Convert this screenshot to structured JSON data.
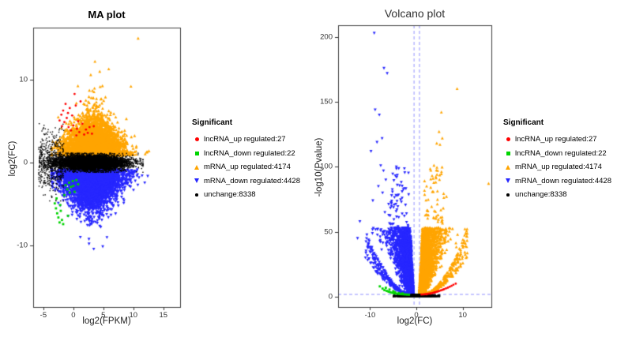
{
  "figure": {
    "background": "#ffffff"
  },
  "colors": {
    "lncRNA_up": "#ff0000",
    "lncRNA_down": "#00d400",
    "mRNA_up": "#ffa500",
    "mRNA_down": "#2727ff",
    "unchange": "#000000",
    "threshold_line": "#9090ff",
    "axis": "#3c3c3c"
  },
  "legend": {
    "title": "Significant",
    "items": [
      {
        "label": "lncRNA_up regulated:27",
        "marker": "circle",
        "color": "#ff0000"
      },
      {
        "label": "lncRNA_down regulated:22",
        "marker": "square",
        "color": "#00d400"
      },
      {
        "label": "mRNA_up regulated:4174",
        "marker": "triangle-up",
        "color": "#ffa500"
      },
      {
        "label": "mRNA_down regulated:4428",
        "marker": "triangle-down",
        "color": "#2727ff"
      },
      {
        "label": "unchange:8338",
        "marker": "dot",
        "color": "#000000"
      }
    ]
  },
  "chart_data": [
    {
      "type": "scatter",
      "title": "MA plot",
      "xlabel": "log2(FPKM)",
      "ylabel": "log2(FC)",
      "xlim": [
        -6.7,
        17.8
      ],
      "ylim": [
        -17.4,
        16.3
      ],
      "xticks": [
        -5,
        0,
        5,
        10,
        15
      ],
      "yticks": [
        -10,
        0,
        10
      ],
      "grid": false,
      "legend_position": "right",
      "series": [
        {
          "name": "mRNA_up regulated",
          "count": 4174,
          "color": "#ffa500",
          "marker": "triangle-up",
          "gen": "ma_wing",
          "params": {
            "dir": 1,
            "x_mean": 3.3,
            "x_sd": 2.4,
            "x_min": -3.6,
            "x_max": 12.6,
            "y_base": 0.85,
            "y_spread": 2.3
          },
          "outlier_points": [
            [
              10.8,
              15
            ],
            [
              3.6,
              12.2
            ],
            [
              5.9,
              11.3
            ],
            [
              4.4,
              11
            ],
            [
              9.6,
              9.2
            ],
            [
              2.9,
              10.6
            ]
          ]
        },
        {
          "name": "mRNA_down regulated",
          "count": 4428,
          "color": "#2727ff",
          "marker": "triangle-down",
          "gen": "ma_wing",
          "params": {
            "dir": -1,
            "x_mean": 3.1,
            "x_sd": 2.5,
            "x_min": -3.6,
            "x_max": 12.9,
            "y_base": 0.8,
            "y_spread": 2.45
          },
          "outlier_points": [
            [
              3.4,
              -10.4
            ],
            [
              4.9,
              -10.1
            ],
            [
              2.6,
              -9.2
            ],
            [
              5.6,
              -9
            ],
            [
              12.4,
              -1.6
            ],
            [
              11.9,
              -2.4
            ]
          ]
        },
        {
          "name": "unchange",
          "count": 8338,
          "color": "#000000",
          "marker": "dot",
          "gen": "ma_band",
          "params": {
            "x_mean": 3.0,
            "x_sd": 2.9,
            "x_min": -5.6,
            "x_max": 11.6,
            "y_sd": 0.42,
            "y_clip": 1.15,
            "left_frac": 0.06,
            "left_x": [
              -5.8,
              -1.6
            ],
            "left_y_sd": 2.0
          }
        },
        {
          "name": "lncRNA_down regulated",
          "count": 22,
          "color": "#00d400",
          "marker": "square",
          "points": [
            [
              -3.1,
              -4.9
            ],
            [
              -2.9,
              -5.5
            ],
            [
              -2.7,
              -6.1
            ],
            [
              -2.5,
              -6.6
            ],
            [
              -2.3,
              -7.2
            ],
            [
              -2.1,
              -5.8
            ],
            [
              -1.9,
              -6.9
            ],
            [
              -1.7,
              -7.4
            ],
            [
              -2.8,
              -4.3
            ],
            [
              -2.2,
              -5.1
            ],
            [
              -1.3,
              -2.7
            ],
            [
              -1.0,
              -3.2
            ],
            [
              -0.7,
              -2.4
            ],
            [
              -0.4,
              -2.9
            ],
            [
              -0.1,
              -2.2
            ],
            [
              0.2,
              -3.5
            ],
            [
              0.5,
              -2.1
            ],
            [
              0.8,
              -2.6
            ],
            [
              -1.5,
              -3.9
            ],
            [
              -0.9,
              -6.4
            ],
            [
              0.0,
              -2.8
            ],
            [
              -0.6,
              -3.6
            ]
          ]
        },
        {
          "name": "lncRNA_up regulated",
          "count": 27,
          "color": "#ff0000",
          "marker": "circle",
          "points": [
            [
              -2.3,
              5.1
            ],
            [
              -2.0,
              5.8
            ],
            [
              -1.7,
              6.3
            ],
            [
              -1.5,
              4.9
            ],
            [
              -1.3,
              7.1
            ],
            [
              -1.1,
              5.4
            ],
            [
              -0.9,
              6.0
            ],
            [
              -0.8,
              4.3
            ],
            [
              -0.6,
              6.6
            ],
            [
              -0.4,
              3.9
            ],
            [
              -0.2,
              5.7
            ],
            [
              0.0,
              4.5
            ],
            [
              0.2,
              8.3
            ],
            [
              0.4,
              6.9
            ],
            [
              0.6,
              4.1
            ],
            [
              0.8,
              5.0
            ],
            [
              1.0,
              3.7
            ],
            [
              1.2,
              7.4
            ],
            [
              1.5,
              4.7
            ],
            [
              1.8,
              3.4
            ],
            [
              2.1,
              4.0
            ],
            [
              2.4,
              3.6
            ],
            [
              2.7,
              4.3
            ],
            [
              3.1,
              3.5
            ],
            [
              3.4,
              4.4
            ],
            [
              -1.9,
              4.4
            ],
            [
              0.5,
              3.3
            ]
          ]
        }
      ]
    },
    {
      "type": "scatter",
      "title": "Volcano plot",
      "xlabel": "log2(FC)",
      "ylabel": "-log10(Pvalue)",
      "xlim": [
        -16.9,
        16.2
      ],
      "ylim": [
        -8,
        209
      ],
      "xticks": [
        -10,
        0,
        10
      ],
      "yticks": [
        0,
        50,
        100,
        150,
        200
      ],
      "grid": false,
      "legend_position": "right",
      "threshold_lines": {
        "vlines": [
          -0.585,
          0.585
        ],
        "hline": 2,
        "style": "dashed",
        "color": "#9090ff"
      },
      "series": [
        {
          "name": "mRNA_up regulated",
          "count": 4174,
          "color": "#ffa500",
          "marker": "triangle-up",
          "gen": "volcano_wing",
          "params": {
            "dir": 1,
            "x0": 0.62
          },
          "outlier_points": [
            [
              8.8,
              160
            ],
            [
              5.4,
              142
            ],
            [
              4.9,
              127
            ],
            [
              5.6,
              122
            ],
            [
              4.4,
              118
            ],
            [
              5.1,
              117
            ],
            [
              3.8,
              101
            ],
            [
              4.6,
              97
            ],
            [
              3.4,
              93
            ],
            [
              4.2,
              88
            ],
            [
              15.6,
              87
            ],
            [
              3.1,
              84
            ],
            [
              6.5,
              77
            ],
            [
              5.8,
              68
            ]
          ]
        },
        {
          "name": "mRNA_down regulated",
          "count": 4428,
          "color": "#2727ff",
          "marker": "triangle-down",
          "gen": "volcano_wing",
          "params": {
            "dir": -1,
            "x0": 0.62
          },
          "outlier_points": [
            [
              -9.1,
              203
            ],
            [
              -7.0,
              176
            ],
            [
              -6.3,
              172
            ],
            [
              -8.9,
              144
            ],
            [
              -8.0,
              140
            ],
            [
              -7.4,
              122
            ],
            [
              -8.5,
              119
            ],
            [
              -9.8,
              112
            ],
            [
              -7.7,
              101
            ],
            [
              -7.1,
              97
            ],
            [
              -6.6,
              90
            ],
            [
              -8.2,
              85
            ],
            [
              -7.3,
              80
            ],
            [
              -9.4,
              74
            ],
            [
              -6.8,
              65
            ],
            [
              -12.2,
              58
            ],
            [
              -12.7,
              45
            ],
            [
              -11.0,
              30
            ]
          ]
        },
        {
          "name": "unchange",
          "count": 8338,
          "color": "#000000",
          "marker": "dot",
          "gen": "volcano_band",
          "params": {
            "x_clip": 5,
            "y_clip": 1.9
          }
        },
        {
          "name": "lncRNA_down regulated",
          "count": 22,
          "color": "#00d400",
          "marker": "square",
          "points": [
            [
              -7.9,
              7.9
            ],
            [
              -7.3,
              6.2
            ],
            [
              -6.9,
              5.0
            ],
            [
              -6.4,
              4.4
            ],
            [
              -6.0,
              3.8
            ],
            [
              -5.6,
              3.3
            ],
            [
              -5.2,
              2.9
            ],
            [
              -4.8,
              2.6
            ],
            [
              -4.4,
              2.4
            ],
            [
              -4.0,
              2.2
            ],
            [
              -3.6,
              2.0
            ],
            [
              -3.2,
              1.9
            ],
            [
              -2.8,
              1.8
            ],
            [
              -2.4,
              1.7
            ],
            [
              -2.0,
              1.6
            ],
            [
              -1.6,
              1.5
            ],
            [
              -5.8,
              5.5
            ],
            [
              -4.6,
              3.4
            ],
            [
              -3.0,
              2.5
            ],
            [
              -6.6,
              6.8
            ],
            [
              -5.0,
              4.2
            ],
            [
              -3.8,
              2.8
            ]
          ]
        },
        {
          "name": "lncRNA_up regulated",
          "count": 27,
          "color": "#ff0000",
          "marker": "circle",
          "points": [
            [
              1.1,
              1.6
            ],
            [
              1.4,
              1.7
            ],
            [
              1.7,
              1.8
            ],
            [
              2.0,
              1.9
            ],
            [
              2.3,
              2.0
            ],
            [
              2.6,
              2.2
            ],
            [
              2.9,
              2.4
            ],
            [
              3.2,
              2.6
            ],
            [
              3.5,
              2.8
            ],
            [
              3.8,
              3.1
            ],
            [
              4.1,
              3.4
            ],
            [
              4.4,
              3.7
            ],
            [
              4.7,
              4.0
            ],
            [
              5.0,
              4.4
            ],
            [
              5.3,
              4.8
            ],
            [
              5.6,
              5.2
            ],
            [
              6.0,
              5.7
            ],
            [
              6.4,
              6.3
            ],
            [
              6.8,
              6.9
            ],
            [
              7.2,
              7.6
            ],
            [
              7.6,
              8.3
            ],
            [
              8.0,
              9.1
            ],
            [
              8.5,
              10.0
            ],
            [
              2.2,
              1.8
            ],
            [
              3.0,
              2.3
            ],
            [
              4.0,
              3.2
            ],
            [
              5.8,
              5.4
            ]
          ]
        }
      ]
    }
  ]
}
